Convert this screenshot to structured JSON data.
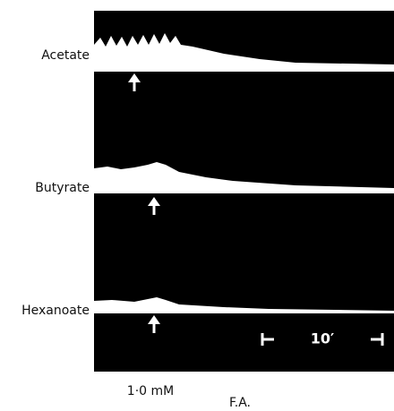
{
  "labels": [
    "Acetate",
    "Butyrate",
    "Hexanoate"
  ],
  "scale_bar": "10′",
  "concentration": "1·0 mM",
  "x_label": "F.A."
}
